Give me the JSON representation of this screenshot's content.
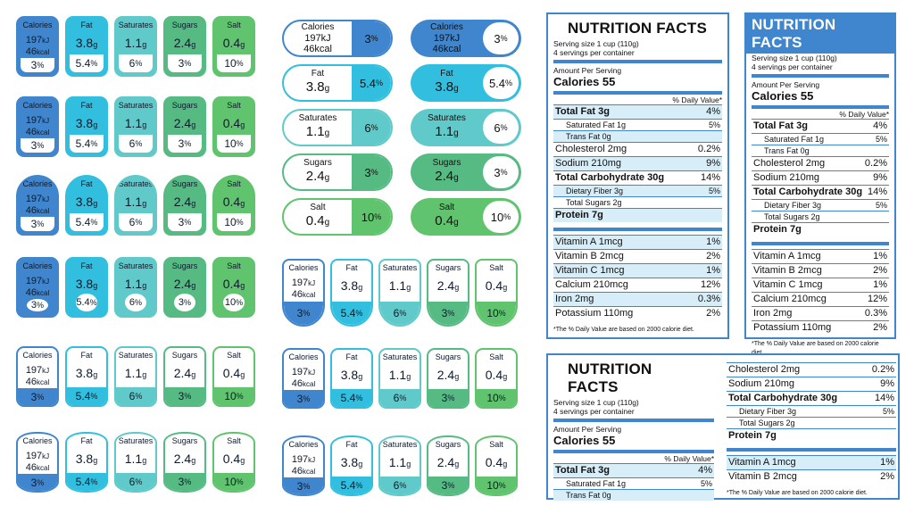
{
  "labels": {
    "calories": "Calories",
    "fat": "Fat",
    "saturates": "Saturates",
    "sugars": "Sugars",
    "salt": "Salt"
  },
  "values": {
    "kj": "197",
    "kj_unit": "kJ",
    "kcal": "46",
    "kcal_unit": "kcal",
    "fat": "3.8",
    "saturates": "1.1",
    "sugars": "2.4",
    "salt": "0.4",
    "unit_g": "g"
  },
  "pct": {
    "calories": "3",
    "fat": "5.4",
    "saturates": "6",
    "sugars": "3",
    "salt": "10",
    "sign": "%"
  },
  "colors": {
    "blue": "#3f86cf",
    "cyan": "#32bfdf",
    "teal": "#5fcac9",
    "green": "#55bb83",
    "lime": "#5fc46d"
  },
  "nf": {
    "title": "NUTRITION FACTS",
    "serving": "Serving size 1 cup (110g)",
    "servings": "4 servings per container",
    "amount": "Amount Per Serving",
    "calories": "Calories 55",
    "dv": "% Daily Value*",
    "rows": [
      {
        "n": "Total Fat 3g",
        "v": "4%",
        "t": "b"
      },
      {
        "n": "Saturated Fat 1g",
        "v": "5%",
        "t": "sub"
      },
      {
        "n": "Trans Fat 0g",
        "v": "",
        "t": "sub"
      },
      {
        "n": "Cholesterol 2mg",
        "v": "0.2%",
        "t": "n"
      },
      {
        "n": "Sodium 210mg",
        "v": "9%",
        "t": "n"
      },
      {
        "n": "Total Carbohydrate 30g",
        "v": "14%",
        "t": "n"
      },
      {
        "n": "Dietary Fiber 3g",
        "v": "5%",
        "t": "sub"
      },
      {
        "n": "Total Sugars 2g",
        "v": "",
        "t": "sub"
      },
      {
        "n": "Protein 7g",
        "v": "",
        "t": "n"
      }
    ],
    "vit": [
      {
        "n": "Vitamin A 1mcg",
        "v": "1%"
      },
      {
        "n": "Vitamin B 2mcg",
        "v": "2%"
      },
      {
        "n": "Vitamin C 1mcg",
        "v": "1%"
      },
      {
        "n": "Calcium 210mcg",
        "v": "12%"
      },
      {
        "n": "Iron 2mg",
        "v": "0.3%"
      },
      {
        "n": "Potassium 110mg",
        "v": "2%"
      }
    ],
    "note": "*The % Daily Value are based on 2000 calorie diet."
  }
}
